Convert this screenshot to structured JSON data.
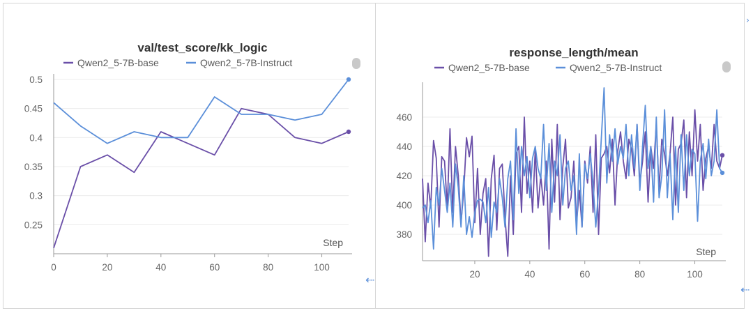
{
  "charts": [
    {
      "id": "left",
      "title": "val/test_score/kk_logic",
      "xlabel": "Step",
      "chart_data": {
        "type": "line",
        "x": [
          0,
          10,
          20,
          30,
          40,
          50,
          60,
          70,
          80,
          90,
          100,
          110
        ],
        "xlim": [
          0,
          110
        ],
        "ylim": [
          0.2,
          0.5
        ],
        "yticks": [
          0.25,
          0.3,
          0.35,
          0.4,
          0.45,
          0.5
        ],
        "yticklabels": [
          "0.25",
          "0.3",
          "0.35",
          "0.4",
          "0.45",
          "0.5"
        ],
        "xticks": [
          0,
          20,
          40,
          60,
          80,
          100
        ],
        "series": [
          {
            "name": "Qwen2_5-7B-base",
            "color": "#6a4fa8",
            "values": [
              0.21,
              0.35,
              0.37,
              0.34,
              0.41,
              0.39,
              0.37,
              0.45,
              0.44,
              0.4,
              0.39,
              0.41
            ]
          },
          {
            "name": "Qwen2_5-7B-Instruct",
            "color": "#5b8fd9",
            "values": [
              0.46,
              0.42,
              0.39,
              0.41,
              0.4,
              0.4,
              0.47,
              0.44,
              0.44,
              0.43,
              0.44,
              0.5
            ]
          }
        ],
        "grid": true,
        "legend_position": "top"
      }
    },
    {
      "id": "right",
      "title": "response_length/mean",
      "xlabel": "Step",
      "chart_data": {
        "type": "line",
        "x_start": 1,
        "xlim": [
          1,
          110
        ],
        "ylim": [
          362,
          480
        ],
        "yticks": [
          380,
          400,
          420,
          440,
          460
        ],
        "yticklabels": [
          "380",
          "400",
          "420",
          "440",
          "460"
        ],
        "xticks": [
          20,
          40,
          60,
          80,
          100
        ],
        "series": [
          {
            "name": "Qwen2_5-7B-base",
            "color": "#6a4fa8",
            "values": [
              418,
              375,
              415,
              398,
              444,
              432,
              385,
              433,
              430,
              398,
              452,
              395,
              440,
              420,
              388,
              410,
              446,
              433,
              447,
              388,
              425,
              380,
              408,
              418,
              365,
              418,
              434,
              383,
              425,
              428,
              392,
              365,
              420,
              380,
              435,
              440,
              395,
              460,
              408,
              430,
              395,
              438,
              398,
              420,
              400,
              430,
              370,
              445,
              402,
              455,
              390,
              426,
              445,
              398,
              405,
              430,
              388,
              410,
              385,
              430,
              415,
              440,
              395,
              448,
              380,
              432,
              435,
              440,
              422,
              445,
              400,
              437,
              450,
              430,
              418,
              445,
              438,
              420,
              455,
              415,
              430,
              450,
              402,
              440,
              425,
              455,
              410,
              445,
              435,
              420,
              435,
              460,
              400,
              438,
              442,
              458,
              405,
              450,
              420,
              465,
              430,
              455,
              410,
              432,
              440,
              425,
              455,
              430,
              425,
              434
            ]
          },
          {
            "name": "Qwen2_5-7B-Instruct",
            "color": "#5b8fd9",
            "values": [
              398,
              400,
              388,
              403,
              370,
              412,
              400,
              425,
              410,
              395,
              415,
              385,
              428,
              412,
              385,
              420,
              380,
              392,
              378,
              395,
              403,
              404,
              402,
              388,
              412,
              378,
              402,
              395,
              418,
              405,
              385,
              418,
              430,
              390,
              452,
              408,
              440,
              420,
              433,
              405,
              432,
              440,
              425,
              418,
              455,
              410,
              442,
              395,
              430,
              420,
              448,
              400,
              425,
              430,
              410,
              420,
              380,
              435,
              385,
              428,
              418,
              435,
              415,
              385,
              410,
              445,
              480,
              415,
              448,
              430,
              452,
              428,
              440,
              432,
              455,
              420,
              448,
              425,
              455,
              410,
              440,
              468,
              425,
              440,
              402,
              460,
              405,
              420,
              465,
              405,
              435,
              390,
              440,
              395,
              448,
              410,
              448,
              420,
              438,
              435,
              389,
              430,
              442,
              418,
              445,
              420,
              430,
              465,
              425,
              422
            ]
          }
        ],
        "grid": true,
        "legend_position": "top"
      }
    }
  ]
}
